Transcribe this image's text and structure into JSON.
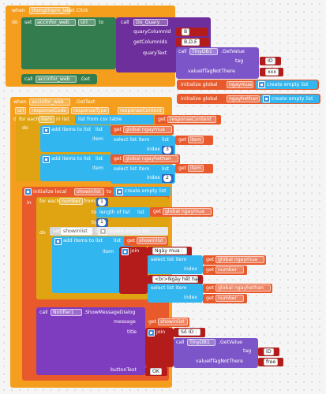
{
  "colors": {
    "event": "#f59e1d",
    "proc": "#6d2f9c",
    "text": "#b41c1c",
    "var": "#e85a2c",
    "list": "#31b6f0",
    "loop": "#e0a412",
    "db": "#7c56c8",
    "web": "#327c4e",
    "notifier": "#7e3cbf",
    "math": "#2f68c4",
    "math2": "#1f4ea6"
  },
  "event1": {
    "when": "when",
    "component": "thongtinpro_label",
    "event": ".Click",
    "do": "do"
  },
  "set_url": {
    "set": "set",
    "component": "accinfor_web",
    "prop": "Url",
    "to": "to"
  },
  "call_query": {
    "call": "call",
    "component": "Do_Quary",
    "rows": "rowColumn",
    "rows_label": "quaryColumnId",
    "ids_label": "getColumnIds",
    "quarytext": "quaryText",
    "b": "B",
    "bde": "B,D,E"
  },
  "tinydb1": {
    "call": "call",
    "component": "TinyDB1",
    "method": ".GetValue",
    "tag": "tag",
    "tag_val": "ID",
    "vtn": "valueIfTagNotThere",
    "vtn_val": "xxx"
  },
  "call_get": {
    "call": "call",
    "component": "accinfor_web",
    "method": ".Get"
  },
  "globals": {
    "initialize": "initialize global",
    "name1": "ngaymua",
    "to": "to",
    "create": "create empty list",
    "name2": "ngayhethan"
  },
  "event2": {
    "when": "when",
    "component": "accinfor_web",
    "event": ".GotText",
    "params": [
      "url",
      "responseCode",
      "responseType",
      "responseContent"
    ],
    "do": "do"
  },
  "foreach1": {
    "for_each": "for each",
    "item": "item",
    "in_list": "in list",
    "list_from_csv": "list from csv table",
    "text": "text",
    "get": "get",
    "resp": "responseContent",
    "do": "do"
  },
  "add1": {
    "add": "add items to list",
    "list": "list",
    "get": "get",
    "global_ngaymua": "global ngaymua",
    "item": "item",
    "select": "select list item",
    "list2": "list",
    "get_item": "item",
    "index": "index",
    "idx": "3"
  },
  "add2": {
    "global_ngayhethan": "global ngayhethan",
    "idx": "2"
  },
  "local": {
    "initialize": "initialize local",
    "name": "showinlist",
    "to": "to",
    "create": "create empty list",
    "in": "in"
  },
  "foreach2": {
    "for_each": "for each",
    "var": "number",
    "from": "from",
    "from_val": "1",
    "to": "to",
    "length": "length of list",
    "list": "list",
    "by": "by",
    "by_val": "1",
    "do": "do"
  },
  "set_local": {
    "set": "set",
    "name": "showinlist",
    "to": "to",
    "create": "create empty list"
  },
  "add3": {
    "add": "add items to list",
    "list": "list",
    "get": "get",
    "showinlist": "showinlist",
    "item": "item",
    "join": "join",
    "ngaymua": "Ngày mua :",
    "select": "select list item",
    "global_ngaymua": "global ngaymua",
    "index": "index",
    "number": "number",
    "br": "<br>Ngày hết hạn :",
    "global_ngayhethan": "global ngayhethan"
  },
  "notifier": {
    "call": "call",
    "component": "Notifier1",
    "method": ".ShowMessageDialog",
    "message": "message",
    "get": "get",
    "showinlist": "showinlist",
    "title": "title",
    "join": "join",
    "soid": "Số ID :",
    "tinydb": "TinyDB1",
    "getvalue": ".GetValue",
    "tag": "tag",
    "tag_val": "ID",
    "vtn": "valueIfTagNotThere",
    "vtn_val": "free",
    "button": "buttonText",
    "ok": "OK"
  }
}
